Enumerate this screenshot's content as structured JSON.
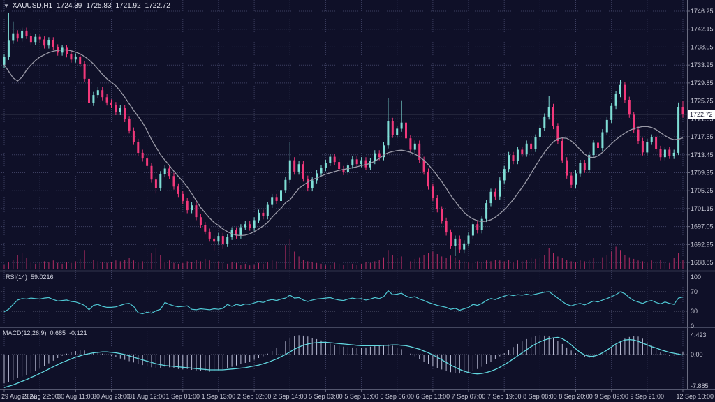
{
  "header": {
    "icon": "▼",
    "symbol_period": "XAUUSD,H1",
    "open": "1724.39",
    "high": "1725.83",
    "low": "1721.92",
    "close": "1722.72"
  },
  "panes": {
    "rsi_label": "RSI(14)",
    "rsi_value": "59.0216",
    "macd_label": "MACD(12,26,9)",
    "macd_main": "0.685",
    "macd_signal": "-0.121"
  },
  "price_axis": {
    "current_label": "1722.72"
  },
  "colors": {
    "background": "#0f1028",
    "bull": "#7fded6",
    "bear": "#f2387a",
    "volume": "#b52d64",
    "ma_line": "#9b9ba8",
    "rsi_line": "#4fc8d4",
    "macd_signal": "#62d8e0",
    "macd_histogram": "#b9bcd4",
    "grid": "#3e4062",
    "level_line": "#5a5c74",
    "axis_text": "#c8c9d6",
    "separator": "#555870",
    "border": "#6a6c80",
    "price_line": "#a9aab4",
    "price_label_bg": "#ffffff",
    "price_label_text": "#15162e"
  },
  "chart_data": {
    "type": "candlestick",
    "symbol": "XAUUSD",
    "timeframe": "H1",
    "ohlc": {
      "open": 1724.39,
      "high": 1725.83,
      "low": 1721.92,
      "close": 1722.72
    },
    "current_price": 1722.72,
    "x_labels": [
      "29 Aug 2022",
      "29 Aug 22:00",
      "30 Aug 11:00",
      "30 Aug 23:00",
      "31 Aug 12:00",
      "1 Sep 01:00",
      "1 Sep 13:00",
      "2 Sep 02:00",
      "2 Sep 14:00",
      "5 Sep 03:00",
      "5 Sep 15:00",
      "6 Sep 06:00",
      "6 Sep 18:00",
      "7 Sep 07:00",
      "7 Sep 19:00",
      "8 Sep 08:00",
      "8 Sep 20:00",
      "9 Sep 09:00",
      "9 Sep 21:00",
      "12 Sep 10:00"
    ],
    "bars_per_label": 8,
    "y_axis": {
      "labels": [
        "1746.25",
        "1742.15",
        "1738.05",
        "1733.95",
        "1729.85",
        "1725.75",
        "1721.65",
        "1717.55",
        "1713.45",
        "1709.35",
        "1705.25",
        "1701.15",
        "1697.05",
        "1692.95",
        "1688.85"
      ],
      "top_value": 1746.25,
      "step": 4.1
    },
    "first_open": 1734.0,
    "default_wick": 0.7,
    "closes": [
      1735.8,
      1739.5,
      1741.2,
      1740.0,
      1741.8,
      1740.6,
      1739.2,
      1740.4,
      1739.8,
      1738.4,
      1739.6,
      1738.0,
      1736.8,
      1737.9,
      1736.4,
      1735.2,
      1735.9,
      1734.2,
      1730.8,
      1725.3,
      1727.1,
      1728.2,
      1726.6,
      1725.4,
      1724.8,
      1723.2,
      1724.1,
      1721.6,
      1719.0,
      1716.4,
      1713.9,
      1712.6,
      1710.9,
      1707.8,
      1705.9,
      1709.0,
      1710.3,
      1708.6,
      1706.2,
      1704.5,
      1702.9,
      1700.8,
      1701.9,
      1699.2,
      1697.4,
      1695.9,
      1694.3,
      1693.6,
      1694.9,
      1693.1,
      1694.7,
      1696.2,
      1695.0,
      1696.9,
      1697.6,
      1696.8,
      1698.5,
      1700.2,
      1699.4,
      1702.0,
      1703.8,
      1702.9,
      1705.4,
      1707.7,
      1712.2,
      1709.6,
      1711.3,
      1708.0,
      1705.8,
      1707.6,
      1709.2,
      1710.4,
      1711.6,
      1713.0,
      1711.8,
      1710.2,
      1709.5,
      1711.0,
      1712.4,
      1711.3,
      1712.2,
      1710.6,
      1712.0,
      1713.8,
      1712.9,
      1715.6,
      1721.2,
      1718.0,
      1719.4,
      1720.8,
      1717.2,
      1714.6,
      1716.0,
      1712.3,
      1709.6,
      1706.2,
      1703.6,
      1701.0,
      1698.4,
      1695.7,
      1692.6,
      1694.3,
      1691.8,
      1693.2,
      1695.0,
      1697.6,
      1696.2,
      1698.8,
      1702.4,
      1705.0,
      1703.9,
      1707.6,
      1710.2,
      1713.4,
      1712.0,
      1714.6,
      1713.7,
      1716.0,
      1714.8,
      1717.4,
      1719.6,
      1722.2,
      1724.4,
      1720.0,
      1716.6,
      1712.2,
      1708.7,
      1706.6,
      1709.2,
      1711.6,
      1710.0,
      1713.4,
      1716.2,
      1715.0,
      1718.6,
      1721.4,
      1724.6,
      1727.3,
      1729.4,
      1726.0,
      1722.6,
      1719.2,
      1716.6,
      1714.0,
      1716.4,
      1717.4,
      1714.8,
      1712.9,
      1714.6,
      1713.2,
      1713.9,
      1724.39,
      1722.72
    ],
    "spike_highs": {
      "1": 1745.8,
      "2": 1743.9,
      "64": 1716.4,
      "86": 1726.4,
      "89": 1725.9,
      "122": 1726.9,
      "138": 1730.6,
      "151": 1725.4,
      "152": 1725.83
    },
    "spike_lows": {
      "19": 1722.8,
      "34": 1704.6,
      "47": 1691.6,
      "49": 1691.9,
      "101": 1690.3,
      "103": 1690.9,
      "151": 1713.4,
      "152": 1721.92
    },
    "ma": [
      1734.0,
      1732.5,
      1731.0,
      1730.3,
      1731.2,
      1732.8,
      1734.0,
      1735.0,
      1735.8,
      1736.3,
      1736.8,
      1737.1,
      1737.3,
      1737.4,
      1737.4,
      1737.2,
      1736.9,
      1736.5,
      1735.9,
      1735.1,
      1734.2,
      1733.0,
      1731.8,
      1730.8,
      1730.0,
      1729.2,
      1728.0,
      1726.6,
      1725.1,
      1723.6,
      1722.2,
      1720.8,
      1719.0,
      1716.9,
      1715.2,
      1713.5,
      1712.2,
      1711.0,
      1709.7,
      1708.5,
      1707.4,
      1706.1,
      1704.6,
      1703.0,
      1701.4,
      1700.2,
      1699.0,
      1698.0,
      1697.3,
      1696.5,
      1695.9,
      1695.4,
      1695.1,
      1695.0,
      1695.1,
      1695.4,
      1695.9,
      1696.5,
      1697.2,
      1698.0,
      1699.2,
      1700.3,
      1701.2,
      1702.5,
      1703.2,
      1704.5,
      1705.8,
      1706.5,
      1707.2,
      1707.8,
      1708.1,
      1708.6,
      1709.0,
      1709.3,
      1709.6,
      1709.9,
      1710.1,
      1710.3,
      1710.5,
      1710.7,
      1711.0,
      1711.2,
      1711.5,
      1712.0,
      1712.6,
      1713.4,
      1713.9,
      1714.2,
      1714.4,
      1714.5,
      1714.3,
      1714.0,
      1713.6,
      1713.0,
      1712.2,
      1711.2,
      1710.0,
      1708.7,
      1707.3,
      1705.8,
      1704.2,
      1702.8,
      1701.5,
      1700.3,
      1699.4,
      1698.8,
      1698.4,
      1698.2,
      1698.3,
      1698.6,
      1699.2,
      1700.0,
      1700.9,
      1702.0,
      1703.2,
      1704.6,
      1706.0,
      1707.5,
      1709.2,
      1710.9,
      1712.5,
      1714.0,
      1715.3,
      1716.4,
      1717.1,
      1717.3,
      1717.2,
      1716.6,
      1715.7,
      1714.6,
      1713.6,
      1712.9,
      1712.8,
      1713.2,
      1714.0,
      1715.0,
      1716.0,
      1716.9,
      1717.7,
      1718.4,
      1719.0,
      1719.4,
      1719.7,
      1719.9,
      1719.9,
      1719.7,
      1719.2,
      1718.5,
      1717.8,
      1717.2,
      1716.9,
      1717.0,
      1717.3
    ],
    "volume": [
      6,
      9,
      12,
      18,
      20,
      14,
      9,
      7,
      8,
      10,
      9,
      11,
      8,
      7,
      9,
      8,
      10,
      13,
      24,
      20,
      12,
      10,
      9,
      8,
      9,
      11,
      10,
      12,
      14,
      11,
      9,
      10,
      12,
      20,
      26,
      18,
      9,
      11,
      8,
      7,
      8,
      10,
      9,
      12,
      10,
      13,
      11,
      9,
      10,
      8,
      7,
      9,
      8,
      6,
      7,
      5,
      6,
      8,
      7,
      9,
      11,
      10,
      14,
      30,
      38,
      22,
      16,
      12,
      10,
      9,
      8,
      7,
      5,
      6,
      8,
      7,
      6,
      8,
      7,
      6,
      7,
      9,
      8,
      10,
      12,
      15,
      24,
      18,
      14,
      16,
      12,
      10,
      13,
      15,
      18,
      20,
      22,
      19,
      16,
      14,
      17,
      15,
      12,
      10,
      9,
      8,
      10,
      9,
      11,
      10,
      12,
      11,
      10,
      12,
      9,
      11,
      10,
      12,
      14,
      13,
      15,
      18,
      26,
      20,
      16,
      14,
      12,
      10,
      9,
      11,
      10,
      12,
      14,
      12,
      15,
      18,
      22,
      28,
      24,
      18,
      15,
      13,
      11,
      10,
      9,
      11,
      10,
      12,
      9,
      8,
      14,
      20,
      12
    ],
    "rsi": {
      "period_label": "RSI(14)",
      "current": 59.0216,
      "levels": [
        100,
        70,
        30,
        0
      ],
      "values": [
        29,
        34,
        44,
        53,
        56,
        55,
        57,
        56,
        55,
        57,
        58,
        54,
        51,
        52,
        53,
        50,
        49,
        46,
        42,
        33,
        42,
        44,
        40,
        38,
        38,
        39,
        42,
        45,
        46,
        40,
        27,
        25,
        28,
        26,
        31,
        34,
        48,
        44,
        41,
        39,
        40,
        41,
        34,
        33,
        35,
        34,
        33,
        35,
        34,
        36,
        44,
        40,
        44,
        42,
        45,
        44,
        47,
        50,
        48,
        52,
        54,
        52,
        55,
        57,
        63,
        57,
        58,
        53,
        50,
        53,
        55,
        56,
        57,
        58,
        55,
        53,
        52,
        55,
        57,
        55,
        56,
        53,
        55,
        58,
        56,
        60,
        72,
        64,
        65,
        67,
        61,
        58,
        60,
        55,
        52,
        48,
        45,
        42,
        40,
        38,
        34,
        36,
        32,
        35,
        38,
        44,
        42,
        46,
        52,
        56,
        54,
        58,
        61,
        64,
        62,
        64,
        63,
        65,
        63,
        65,
        67,
        69,
        70,
        64,
        57,
        50,
        44,
        41,
        44,
        46,
        43,
        47,
        51,
        49,
        53,
        56,
        60,
        64,
        70,
        66,
        58,
        52,
        49,
        46,
        50,
        52,
        48,
        45,
        49,
        46,
        44,
        57,
        59.02
      ]
    },
    "macd": {
      "label": "MACD(12,26,9)",
      "current_main": 0.685,
      "current_signal": -0.121,
      "scale_max": 4.423,
      "scale_min": -7.885,
      "scale_labels": [
        "4.423",
        "0.00",
        "-7.885"
      ],
      "main": [
        -6.5,
        -6.2,
        -5.8,
        -5.4,
        -5.0,
        -4.6,
        -4.2,
        -3.8,
        -3.2,
        -2.6,
        -2.0,
        -1.4,
        -0.8,
        -0.3,
        0.2,
        0.5,
        0.8,
        1.0,
        0.9,
        0.7,
        0.5,
        0.4,
        0.2,
        0.0,
        -0.3,
        -0.6,
        -0.9,
        -1.2,
        -1.5,
        -1.8,
        -2.1,
        -2.4,
        -2.6,
        -2.9,
        -3.1,
        -3.0,
        -2.8,
        -2.9,
        -3.1,
        -3.3,
        -3.4,
        -3.3,
        -3.5,
        -3.6,
        -3.7,
        -3.8,
        -3.9,
        -3.8,
        -3.6,
        -3.4,
        -3.1,
        -2.8,
        -2.5,
        -2.2,
        -1.9,
        -1.6,
        -1.2,
        -0.8,
        -0.4,
        0.2,
        0.8,
        1.5,
        2.2,
        3.0,
        3.8,
        4.2,
        4.4,
        4.3,
        4.1,
        3.8,
        3.5,
        3.2,
        2.8,
        2.5,
        2.2,
        2.0,
        1.8,
        1.7,
        1.6,
        1.5,
        1.5,
        1.6,
        1.8,
        2.0,
        1.9,
        2.1,
        2.3,
        2.0,
        1.6,
        1.2,
        0.7,
        0.2,
        -0.4,
        -1.0,
        -1.6,
        -2.2,
        -2.7,
        -3.1,
        -3.4,
        -3.7,
        -4.0,
        -4.2,
        -4.3,
        -4.2,
        -4.0,
        -3.7,
        -3.3,
        -2.8,
        -2.2,
        -1.6,
        -1.0,
        -0.4,
        0.3,
        1.0,
        1.7,
        2.4,
        3.0,
        3.5,
        3.9,
        4.2,
        4.4,
        4.3,
        4.1,
        3.7,
        3.1,
        2.4,
        1.6,
        0.9,
        0.3,
        -0.2,
        -0.6,
        -0.8,
        -0.7,
        -0.4,
        0.1,
        0.7,
        1.4,
        2.2,
        3.0,
        3.6,
        4.0,
        4.2,
        4.1,
        3.6,
        2.8,
        2.0,
        1.2,
        0.6,
        0.1,
        -0.3,
        -0.2,
        0.2,
        0.685
      ],
      "signal": [
        -7.5,
        -7.2,
        -6.9,
        -6.5,
        -6.1,
        -5.7,
        -5.2,
        -4.8,
        -4.3,
        -3.8,
        -3.3,
        -2.8,
        -2.3,
        -1.8,
        -1.4,
        -1.0,
        -0.6,
        -0.3,
        0.0,
        0.2,
        0.4,
        0.5,
        0.6,
        0.6,
        0.5,
        0.4,
        0.2,
        0.0,
        -0.3,
        -0.6,
        -0.9,
        -1.2,
        -1.5,
        -1.8,
        -2.1,
        -2.3,
        -2.5,
        -2.6,
        -2.7,
        -2.8,
        -2.9,
        -3.0,
        -3.1,
        -3.2,
        -3.3,
        -3.4,
        -3.5,
        -3.5,
        -3.5,
        -3.5,
        -3.4,
        -3.3,
        -3.2,
        -3.1,
        -3.0,
        -2.8,
        -2.6,
        -2.4,
        -2.1,
        -1.8,
        -1.4,
        -1.0,
        -0.5,
        0.0,
        0.6,
        1.2,
        1.7,
        2.1,
        2.4,
        2.6,
        2.7,
        2.8,
        2.8,
        2.7,
        2.6,
        2.5,
        2.4,
        2.3,
        2.2,
        2.1,
        2.0,
        2.0,
        2.0,
        2.0,
        2.0,
        2.1,
        2.1,
        2.2,
        2.2,
        2.1,
        2.0,
        1.8,
        1.5,
        1.2,
        0.8,
        0.4,
        -0.1,
        -0.6,
        -1.2,
        -1.8,
        -2.4,
        -2.9,
        -3.4,
        -3.8,
        -4.1,
        -4.3,
        -4.4,
        -4.3,
        -4.1,
        -3.8,
        -3.4,
        -2.9,
        -2.3,
        -1.7,
        -1.0,
        -0.3,
        0.4,
        1.1,
        1.8,
        2.4,
        2.9,
        3.3,
        3.6,
        3.8,
        3.9,
        3.6,
        3.0,
        2.2,
        1.3,
        0.5,
        -0.1,
        -0.4,
        -0.4,
        -0.1,
        0.4,
        1.0,
        1.7,
        2.4,
        2.9,
        3.3,
        3.4,
        3.3,
        3.0,
        2.6,
        2.2,
        1.8,
        1.5,
        1.1,
        0.8,
        0.5,
        0.3,
        0.1,
        -0.121
      ]
    }
  }
}
